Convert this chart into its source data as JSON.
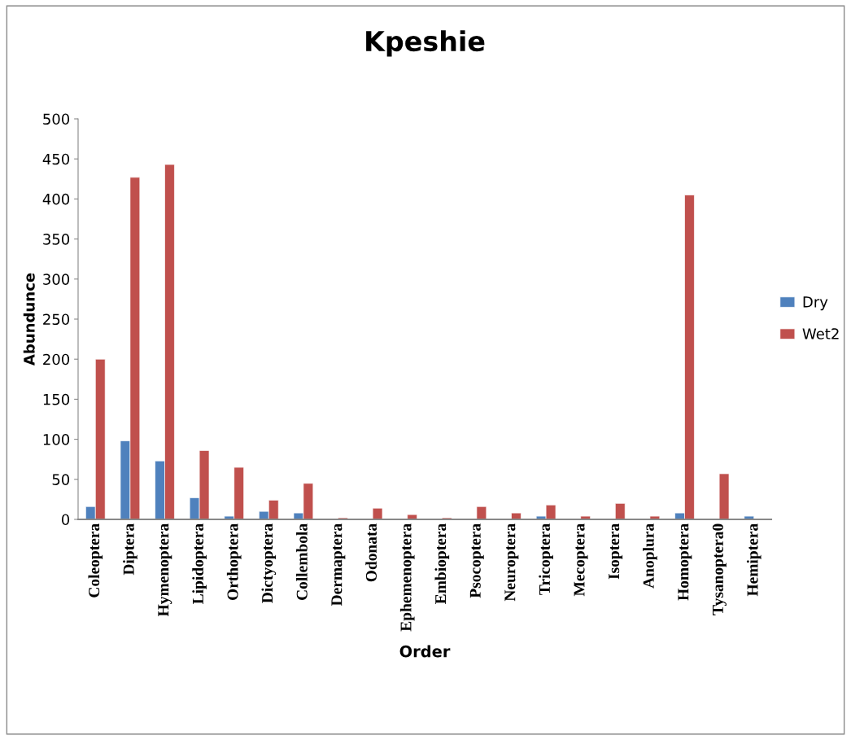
{
  "chart_data": {
    "type": "bar",
    "title": "Kpeshie",
    "xlabel": "Order",
    "ylabel": "Abundunce",
    "categories": [
      "Coleoptera",
      "Diptera",
      "Hymenoptera",
      "Lipidoptera",
      "Orthoptera",
      "Dictyoptera",
      "Collembola",
      "Dermaptera",
      "Odonata",
      "Ephemenoptera",
      "Embioptera",
      "Psocoptera",
      "Neuroptera",
      "Tricoptera",
      "Mecoptera",
      "Isoptera",
      "Anoplura",
      "Homoptera",
      "Tysanoptera0",
      "Hemiptera"
    ],
    "series": [
      {
        "name": "Dry",
        "color": "#4f81bd",
        "values": [
          16,
          98,
          73,
          27,
          4,
          10,
          8,
          null,
          null,
          null,
          null,
          null,
          null,
          4,
          null,
          null,
          null,
          8,
          null,
          4
        ]
      },
      {
        "name": "Wet2",
        "color": "#c0504d",
        "values": [
          200,
          427,
          443,
          86,
          65,
          24,
          45,
          2,
          14,
          6,
          2,
          16,
          8,
          18,
          4,
          20,
          4,
          405,
          57,
          null
        ]
      }
    ],
    "ylim": [
      0,
      500
    ],
    "yticks": [
      0,
      50,
      100,
      150,
      200,
      250,
      300,
      350,
      400,
      450,
      500
    ],
    "grid": false,
    "legend": "right"
  }
}
